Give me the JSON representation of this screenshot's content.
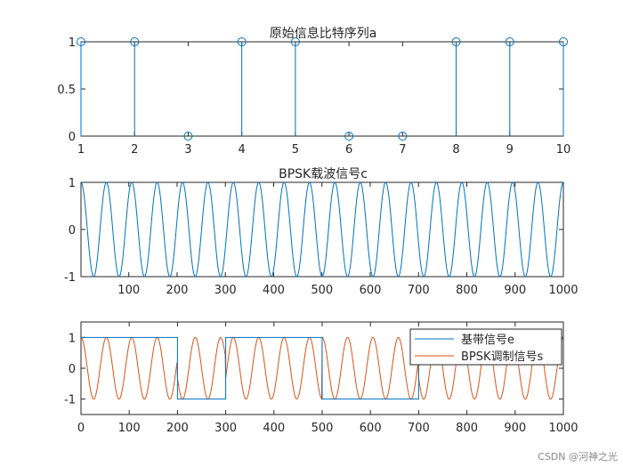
{
  "colors": {
    "blue": "#0072BD",
    "orange": "#D95319",
    "axis": "#262626"
  },
  "chart_data": [
    {
      "type": "stem",
      "title": "原始信息比特序列a",
      "x": [
        1,
        2,
        3,
        4,
        5,
        6,
        7,
        8,
        9,
        10
      ],
      "values": [
        1,
        1,
        0,
        1,
        1,
        0,
        0,
        1,
        1,
        1
      ],
      "xlim": [
        1,
        10
      ],
      "ylim": [
        0,
        1
      ],
      "xticks": [
        "1",
        "2",
        "3",
        "4",
        "5",
        "6",
        "7",
        "8",
        "9",
        "10"
      ],
      "yticks": [
        "0",
        "0.5",
        "1"
      ],
      "marker": "open-circle"
    },
    {
      "type": "line",
      "title": "BPSK载波信号c",
      "function": "cos",
      "cycles": 19,
      "samples": 1000,
      "xlim": [
        1,
        1000
      ],
      "ylim": [
        -1,
        1
      ],
      "xticks": [
        "100",
        "200",
        "300",
        "400",
        "500",
        "600",
        "700",
        "800",
        "900",
        "1000"
      ],
      "yticks": [
        "-1",
        "0",
        "1"
      ]
    },
    {
      "type": "line",
      "title": "",
      "xlim": [
        0,
        1000
      ],
      "ylim": [
        -1.5,
        1.5
      ],
      "xticks": [
        "0",
        "100",
        "200",
        "300",
        "400",
        "500",
        "600",
        "700",
        "800",
        "900",
        "1000"
      ],
      "yticks": [
        "-1",
        "0",
        "1"
      ],
      "legend_position": "top-right",
      "series": [
        {
          "name": "基带信号e",
          "kind": "step",
          "bits": [
            1,
            1,
            0,
            1,
            1,
            0,
            0,
            1,
            1,
            1
          ],
          "samples_per_bit": 100
        },
        {
          "name": "BPSK调制信号s",
          "kind": "modulated",
          "cycles": 19,
          "samples": 1000
        }
      ]
    }
  ],
  "watermark": "CSDN @河神之光"
}
